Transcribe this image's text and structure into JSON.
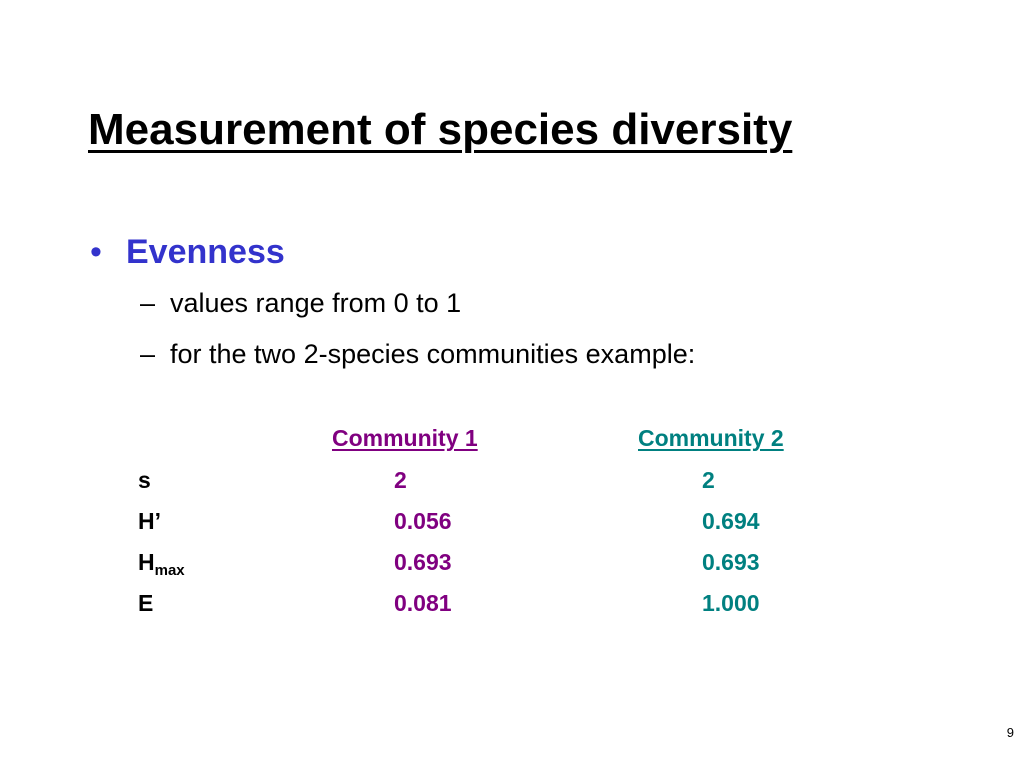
{
  "slide": {
    "title": "Measurement of species diversity",
    "bullet": {
      "marker": "•",
      "text": "Evenness",
      "color": "#3333cc"
    },
    "sub_items": [
      {
        "dash": "–",
        "text": "values range from 0 to 1"
      },
      {
        "dash": "–",
        "text": "for the two 2-species communities example:"
      }
    ],
    "table": {
      "col_headers": [
        "Community 1",
        "Community 2"
      ],
      "col_colors": [
        "#800080",
        "#008080"
      ],
      "rows": [
        {
          "label": "s",
          "label_sub": "",
          "values": [
            "2",
            "2"
          ]
        },
        {
          "label": "H’",
          "label_sub": "",
          "values": [
            "0.056",
            "0.694"
          ]
        },
        {
          "label": "H",
          "label_sub": "max",
          "values": [
            "0.693",
            "0.693"
          ]
        },
        {
          "label": "E",
          "label_sub": "",
          "values": [
            "0.081",
            "1.000"
          ]
        }
      ]
    },
    "page_number": "9"
  }
}
